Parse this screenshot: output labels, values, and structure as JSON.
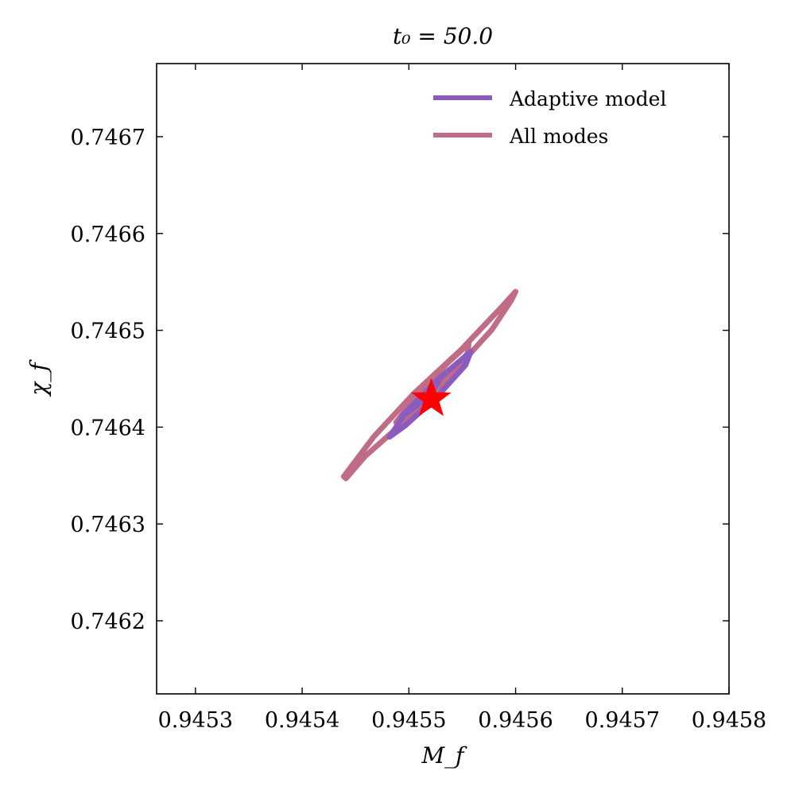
{
  "chart_data": {
    "type": "line",
    "title": "t₀ = 50.0",
    "xlabel": "M_f",
    "ylabel": "χ_f",
    "xlim": [
      0.9452636,
      0.9458
    ],
    "ylim": [
      0.7461245,
      0.7467755
    ],
    "xticks": [
      0.9453,
      0.9454,
      0.9455,
      0.9456,
      0.9457,
      0.9458
    ],
    "xtick_labels": [
      "0.9453",
      "0.9454",
      "0.9455",
      "0.9456",
      "0.9457",
      "0.9458"
    ],
    "yticks": [
      0.7462,
      0.7463,
      0.7464,
      0.7465,
      0.7466,
      0.7467
    ],
    "ytick_labels": [
      "0.7462",
      "0.7463",
      "0.7464",
      "0.7465",
      "0.7466",
      "0.7467"
    ],
    "grid": false,
    "legend_position": "top-right",
    "series": [
      {
        "name": "Adaptive model",
        "color": "#8a5cc0",
        "contours": [
          [
            [
              0.945482,
              0.74639
            ],
            [
              0.945497,
              0.746415
            ],
            [
              0.945526,
              0.746448
            ],
            [
              0.945558,
              0.746478
            ],
            [
              0.945553,
              0.746464
            ],
            [
              0.945526,
              0.746431
            ],
            [
              0.945497,
              0.746402
            ]
          ],
          [
            [
              0.945493,
              0.746411
            ],
            [
              0.945512,
              0.746431
            ],
            [
              0.94553,
              0.746452
            ],
            [
              0.945523,
              0.746438
            ],
            [
              0.945504,
              0.746419
            ]
          ]
        ]
      },
      {
        "name": "All modes",
        "color": "#c06c84",
        "contours": [
          [
            [
              0.945439,
              0.746349
            ],
            [
              0.945467,
              0.74639
            ],
            [
              0.945504,
              0.746434
            ],
            [
              0.945549,
              0.74648
            ],
            [
              0.945586,
              0.746523
            ],
            [
              0.9456,
              0.74654
            ],
            [
              0.945596,
              0.746531
            ],
            [
              0.945578,
              0.746501
            ],
            [
              0.945541,
              0.746456
            ],
            [
              0.945497,
              0.746407
            ],
            [
              0.945459,
              0.74637
            ],
            [
              0.945441,
              0.746347
            ]
          ],
          [
            [
              0.945488,
              0.746405
            ],
            [
              0.945512,
              0.746439
            ],
            [
              0.945538,
              0.746468
            ],
            [
              0.945556,
              0.746486
            ],
            [
              0.945555,
              0.746476
            ],
            [
              0.945534,
              0.746449
            ],
            [
              0.945508,
              0.746421
            ],
            [
              0.945491,
              0.7464
            ]
          ]
        ]
      }
    ],
    "marker": {
      "symbol": "star",
      "color": "#ff0000",
      "x": 0.945521,
      "y": 0.746429
    }
  }
}
